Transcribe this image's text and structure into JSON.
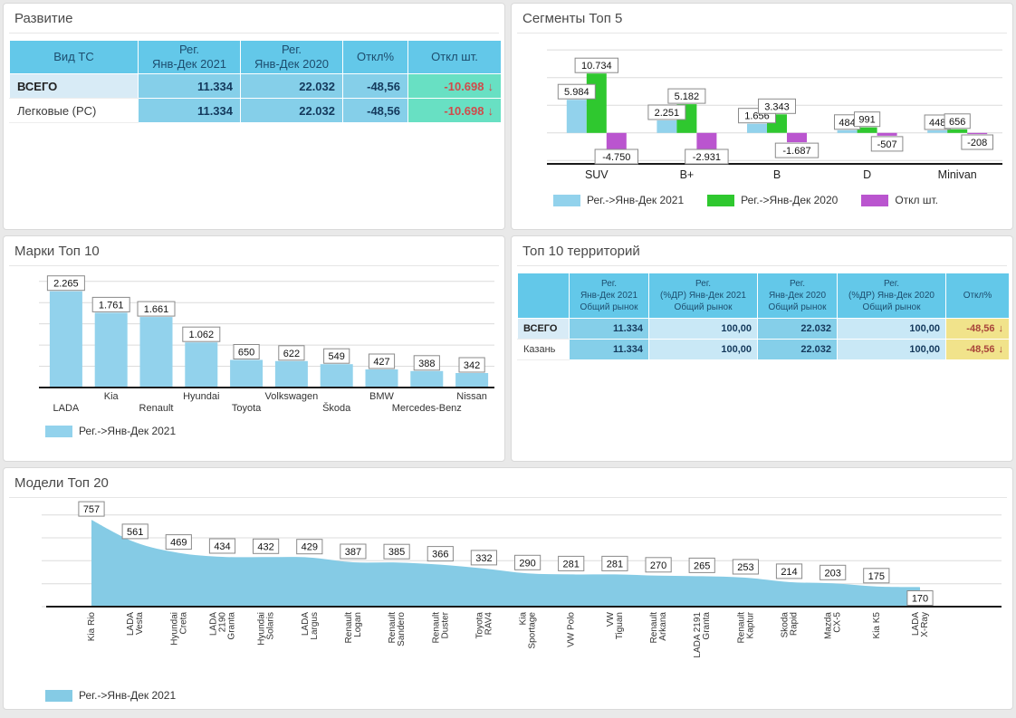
{
  "panels": {
    "development": {
      "title": "Развитие",
      "table": {
        "col_headers": [
          [
            "Вид ТС"
          ],
          [
            "Рег.",
            "Янв-Дек 2021"
          ],
          [
            "Рег.",
            "Янв-Дек 2020"
          ],
          [
            "Откл%"
          ],
          [
            "Откл шт."
          ]
        ],
        "rows": [
          {
            "label": "ВСЕГО",
            "highlight": true,
            "reg_2021": "11.334",
            "reg_2020": "22.032",
            "dev_pct": "-48,56",
            "dev_units": "-10.698",
            "arrow": "↓"
          },
          {
            "label": "Легковые (PC)",
            "highlight": false,
            "reg_2021": "11.334",
            "reg_2020": "22.032",
            "dev_pct": "-48,56",
            "dev_units": "-10.698",
            "arrow": "↓"
          }
        ]
      }
    },
    "segments": {
      "title": "Сегменты Топ 5"
    },
    "brands": {
      "title": "Марки Топ 10"
    },
    "territories": {
      "title": "Топ 10 территорий",
      "table": {
        "col_headers": [
          [
            ""
          ],
          [
            "Рег.",
            "Янв-Дек 2021",
            "Общий рынок"
          ],
          [
            "Рег.",
            "(%ДР) Янв-Дек 2021",
            "Общий рынок"
          ],
          [
            "Рег.",
            "Янв-Дек 2020",
            "Общий рынок"
          ],
          [
            "Рег.",
            "(%ДР) Янв-Дек 2020",
            "Общий рынок"
          ],
          [
            "Откл%"
          ]
        ],
        "rows": [
          {
            "label": "ВСЕГО",
            "highlight": true,
            "reg_2021": "11.334",
            "share_2021": "100,00",
            "reg_2020": "22.032",
            "share_2020": "100,00",
            "dev_pct": "-48,56",
            "arrow": "↓"
          },
          {
            "label": "Казань",
            "highlight": false,
            "reg_2021": "11.334",
            "share_2021": "100,00",
            "reg_2020": "22.032",
            "share_2020": "100,00",
            "dev_pct": "-48,56",
            "arrow": "↓"
          }
        ]
      }
    },
    "models": {
      "title": "Модели Топ 20"
    }
  },
  "chart_data": [
    {
      "panel": "segments",
      "type": "bar",
      "title": "Сегменты Топ 5",
      "categories": [
        "SUV",
        "B+",
        "B",
        "D",
        "Minivan"
      ],
      "series": [
        {
          "name": "Рег.->Янв-Дек 2021",
          "color": "#92d2ec",
          "values": [
            5984,
            2251,
            1656,
            484,
            448
          ]
        },
        {
          "name": "Рег.->Янв-Дек 2020",
          "color": "#2fc82f",
          "values": [
            10734,
            5182,
            3343,
            991,
            656
          ]
        },
        {
          "name": "Откл шт.",
          "color": "#ba55cf",
          "values": [
            -4750,
            -2931,
            -1687,
            -507,
            -208
          ]
        }
      ],
      "ylim": [
        -5600,
        16000
      ],
      "grid_step": 5000,
      "grid": true,
      "legend_position": "bottom",
      "xlabel": "",
      "ylabel": ""
    },
    {
      "panel": "brands",
      "type": "bar",
      "title": "Марки Топ 10",
      "categories": [
        "LADA",
        "Kia",
        "Renault",
        "Hyundai",
        "Toyota",
        "Volkswagen",
        "Škoda",
        "BMW",
        "Mercedes-Benz",
        "Nissan"
      ],
      "series": [
        {
          "name": "Рег.->Янв-Дек 2021",
          "color": "#92d2ec",
          "values": [
            2265,
            1761,
            1661,
            1062,
            650,
            622,
            549,
            427,
            388,
            342
          ]
        }
      ],
      "ylim": [
        0,
        2600
      ],
      "grid_step": 500,
      "grid": true,
      "legend_position": "bottom",
      "xlabel": "",
      "ylabel": ""
    },
    {
      "panel": "models",
      "type": "area",
      "title": "Модели Топ 20",
      "categories": [
        "Kia Rio",
        "LADA\nVesta",
        "Hyundai\nCreta",
        "LADA\n2190\nGranta",
        "Hyundai\nSolaris",
        "LADA\nLargus",
        "Renault\nLogan",
        "Renault\nSandero",
        "Renault\nDuster",
        "Toyota\nRAV4",
        "Kia\nSportage",
        "VW Polo",
        "VW\nTiguan",
        "Renault\nArkana",
        "LADA 2191\nGranta",
        "Renault\nKaptur",
        "Skoda\nRapid",
        "Mazda\nCX-5",
        "Kia K5",
        "LADA\nX-Ray"
      ],
      "series": [
        {
          "name": "Рег.->Янв-Дек 2021",
          "color": "#85cbe5",
          "values": [
            757,
            561,
            469,
            434,
            432,
            429,
            387,
            385,
            366,
            332,
            290,
            281,
            281,
            270,
            265,
            253,
            214,
            203,
            175,
            170
          ]
        }
      ],
      "ylim": [
        0,
        900
      ],
      "grid_step": 200,
      "grid": true,
      "legend_position": "bottom",
      "xlabel": "",
      "ylabel": ""
    }
  ],
  "colors": {
    "header_blue": "#63c8e9",
    "cell_blue_dark": "#85cfe9",
    "cell_blue_light": "#c9e8f6",
    "row_highlight": "#d8ebf6",
    "dev_units_bg": "#68e0c3",
    "dev_units_text": "#d04b4b",
    "terr_dev_bg": "#f1e38b",
    "terr_dev_text": "#a8433a",
    "series_2021": "#92d2ec",
    "series_2020": "#2fc82f",
    "series_dev": "#ba55cf",
    "area_blue": "#85cbe5"
  }
}
